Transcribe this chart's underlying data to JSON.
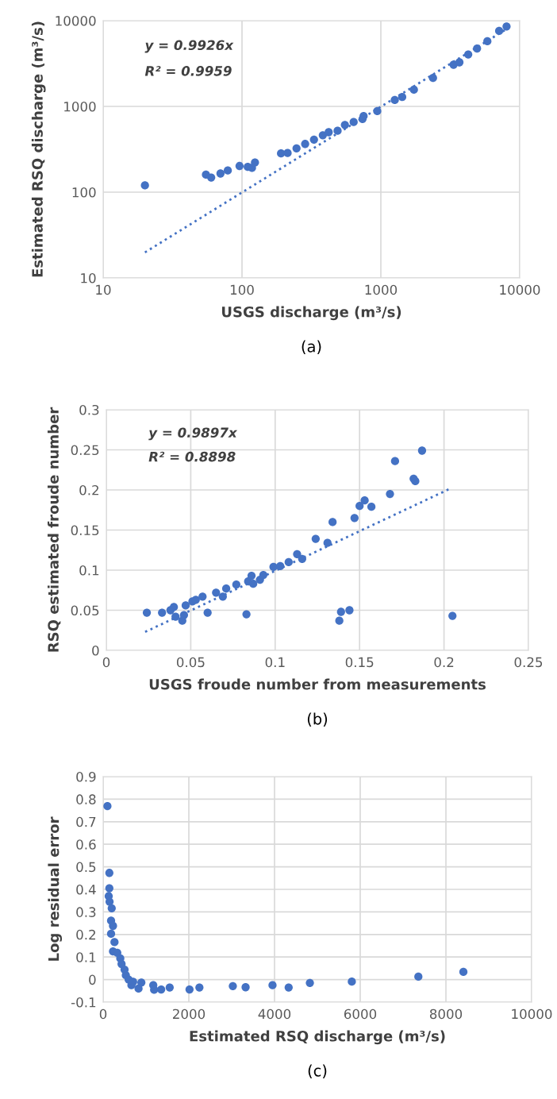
{
  "chart_data": [
    {
      "type": "scatter",
      "xlabel": "USGS discharge (m³/s)",
      "ylabel": "Estimated RSQ discharge (m³/s)",
      "log": "xy",
      "grid": true,
      "marker": "circle",
      "xlim": [
        10,
        10000
      ],
      "ylim": [
        10,
        10000
      ],
      "xticks": [
        10,
        100,
        1000,
        10000
      ],
      "yticks": [
        10,
        100,
        1000,
        10000
      ],
      "annotations": [
        "y = 0.9926x",
        "R² = 0.9959",
        "(a)"
      ],
      "series": [
        {
          "color": "#4472c4",
          "x": [
            20,
            55,
            60,
            70,
            79,
            96,
            110,
            118,
            124,
            191,
            213,
            247,
            285,
            330,
            382,
            421,
            488,
            551,
            637,
            738,
            751,
            942,
            1260,
            1425,
            1730,
            2375,
            3340,
            3680,
            4260,
            4930,
            5850,
            7110,
            8040
          ],
          "values": [
            120,
            160,
            148,
            165,
            179,
            202,
            197,
            192,
            222,
            283,
            286,
            324,
            365,
            410,
            461,
            500,
            520,
            608,
            658,
            713,
            771,
            881,
            1189,
            1288,
            1567,
            2148,
            3062,
            3266,
            4036,
            4732,
            5754,
            7586,
            8551
          ]
        },
        {
          "type": "line",
          "color": "#4472c4",
          "line_style": "dotted",
          "marker": "none",
          "x": [
            20,
            8000
          ],
          "values": [
            19.85,
            7941
          ]
        }
      ]
    },
    {
      "type": "scatter",
      "xlabel": "USGS froude number from measurements",
      "ylabel": "RSQ estimated froude number",
      "grid": true,
      "marker": "circle",
      "xlim": [
        0,
        0.25
      ],
      "ylim": [
        0,
        0.3
      ],
      "xticks": [
        0,
        0.05,
        0.1,
        0.15,
        0.2,
        0.25
      ],
      "yticks": [
        0,
        0.05,
        0.1,
        0.15,
        0.2,
        0.25,
        0.3
      ],
      "annotations": [
        "y = 0.9897x",
        "R² = 0.8898",
        "(b)"
      ],
      "series": [
        {
          "color": "#4472c4",
          "x": [
            0.024,
            0.033,
            0.038,
            0.04,
            0.041,
            0.045,
            0.046,
            0.047,
            0.051,
            0.053,
            0.057,
            0.06,
            0.065,
            0.069,
            0.071,
            0.077,
            0.083,
            0.084,
            0.086,
            0.087,
            0.091,
            0.093,
            0.099,
            0.103,
            0.108,
            0.113,
            0.116,
            0.124,
            0.131,
            0.134,
            0.138,
            0.139,
            0.144,
            0.147,
            0.15,
            0.153,
            0.157,
            0.168,
            0.171,
            0.182,
            0.183,
            0.187,
            0.205
          ],
          "values": [
            0.047,
            0.047,
            0.05,
            0.054,
            0.042,
            0.037,
            0.044,
            0.056,
            0.061,
            0.063,
            0.067,
            0.047,
            0.072,
            0.067,
            0.077,
            0.082,
            0.045,
            0.086,
            0.093,
            0.083,
            0.088,
            0.094,
            0.104,
            0.105,
            0.11,
            0.12,
            0.114,
            0.139,
            0.134,
            0.16,
            0.037,
            0.048,
            0.05,
            0.165,
            0.18,
            0.187,
            0.179,
            0.195,
            0.236,
            0.214,
            0.211,
            0.249,
            0.043
          ]
        },
        {
          "type": "line",
          "color": "#4472c4",
          "line_style": "dotted",
          "marker": "none",
          "x": [
            0.023,
            0.203
          ],
          "values": [
            0.023,
            0.201
          ]
        }
      ]
    },
    {
      "type": "scatter",
      "xlabel": "Estimated RSQ discharge (m³/s)",
      "ylabel": "Log residual error",
      "grid": true,
      "marker": "circle",
      "xlim": [
        0,
        10000
      ],
      "ylim": [
        -0.1,
        0.9
      ],
      "xticks": [
        0,
        2000,
        4000,
        6000,
        8000,
        10000
      ],
      "yticks": [
        -0.1,
        0,
        0.1,
        0.2,
        0.3,
        0.4,
        0.5,
        0.6,
        0.7,
        0.8,
        0.9
      ],
      "annotations": [
        "(c)"
      ],
      "series": [
        {
          "color": "#4472c4",
          "x": [
            100,
            145,
            145,
            130,
            150,
            200,
            185,
            230,
            185,
            265,
            230,
            330,
            400,
            430,
            500,
            530,
            595,
            660,
            700,
            826,
            892,
            1170,
            1190,
            1355,
            1553,
            2016,
            2247,
            3027,
            3325,
            3953,
            4330,
            4825,
            5804,
            7357,
            8408
          ],
          "values": [
            0.769,
            0.473,
            0.405,
            0.37,
            0.345,
            0.316,
            0.261,
            0.238,
            0.203,
            0.166,
            0.125,
            0.119,
            0.094,
            0.069,
            0.044,
            0.019,
            0.0,
            -0.025,
            -0.01,
            -0.04,
            -0.013,
            -0.025,
            -0.045,
            -0.044,
            -0.035,
            -0.044,
            -0.035,
            -0.029,
            -0.034,
            -0.025,
            -0.035,
            -0.015,
            -0.009,
            0.013,
            0.034
          ]
        }
      ]
    }
  ]
}
